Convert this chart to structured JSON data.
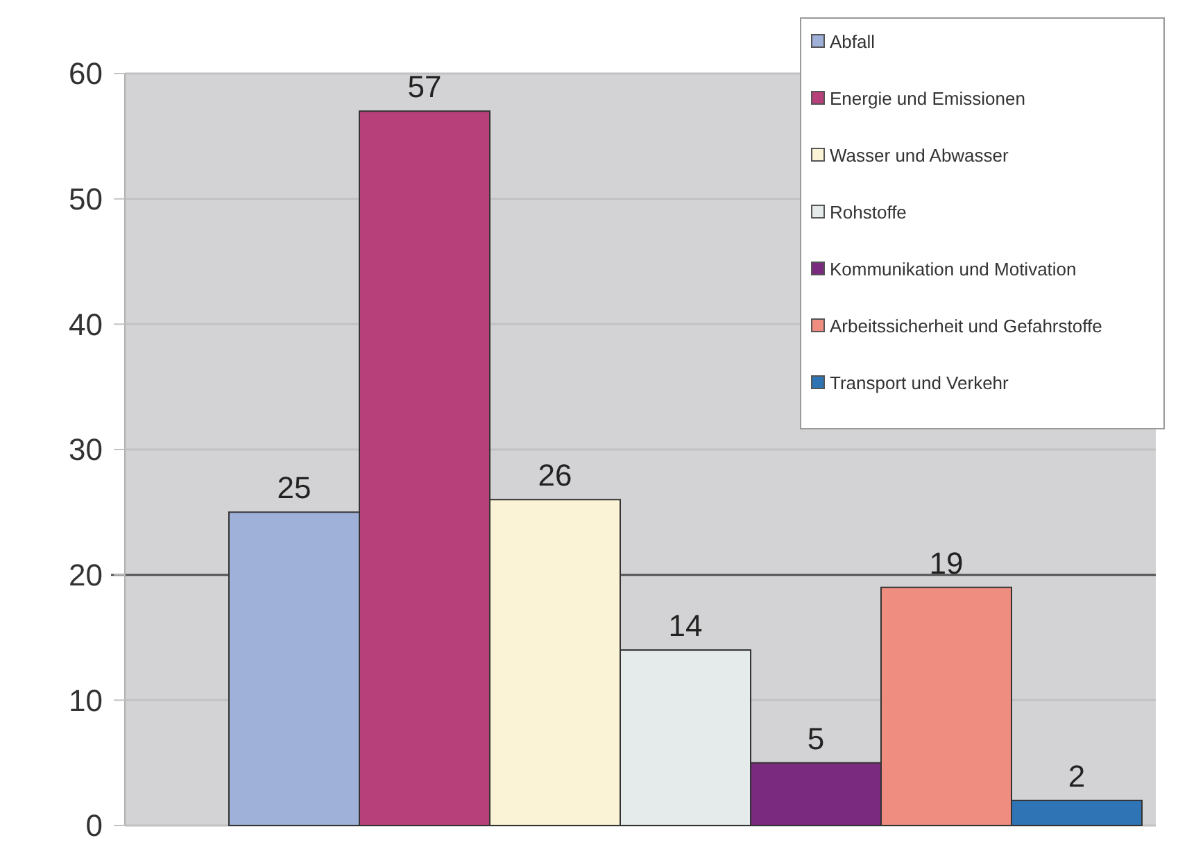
{
  "chart_data": {
    "type": "bar",
    "categories": [
      null,
      null,
      null,
      null,
      null,
      null,
      null
    ],
    "series": [
      {
        "name": "Abfall",
        "color": "#9fb1d8",
        "values": [
          25,
          null,
          null,
          null,
          null,
          null,
          null
        ]
      },
      {
        "name": "Energie und Emissionen",
        "color": "#b8407a",
        "values": [
          null,
          57,
          null,
          null,
          null,
          null,
          null
        ]
      },
      {
        "name": "Wasser und Abwasser",
        "color": "#fbf3d5",
        "values": [
          null,
          null,
          26,
          null,
          null,
          null,
          null
        ]
      },
      {
        "name": "Rohstoffe",
        "color": "#e4ebea",
        "values": [
          null,
          null,
          null,
          14,
          null,
          null,
          null
        ]
      },
      {
        "name": "Kommunikation und Motivation",
        "color": "#7a2a7f",
        "values": [
          null,
          null,
          null,
          null,
          5,
          null,
          null
        ]
      },
      {
        "name": "Arbeitssicherheit und Gefahrstoffe",
        "color": "#ef8e80",
        "values": [
          null,
          null,
          null,
          null,
          null,
          19,
          null
        ]
      },
      {
        "name": "Transport und Verkehr",
        "color": "#2f75b5",
        "values": [
          null,
          null,
          null,
          null,
          null,
          null,
          2
        ]
      }
    ],
    "ylim": [
      0,
      60
    ],
    "yticks": [
      0,
      10,
      20,
      30,
      40,
      50,
      60
    ],
    "stacked": true,
    "grid": "y",
    "legend": "top right",
    "data_labels": true,
    "ref_lines": [
      {
        "axis": "y",
        "value": 20,
        "color": "#555555"
      }
    ]
  }
}
